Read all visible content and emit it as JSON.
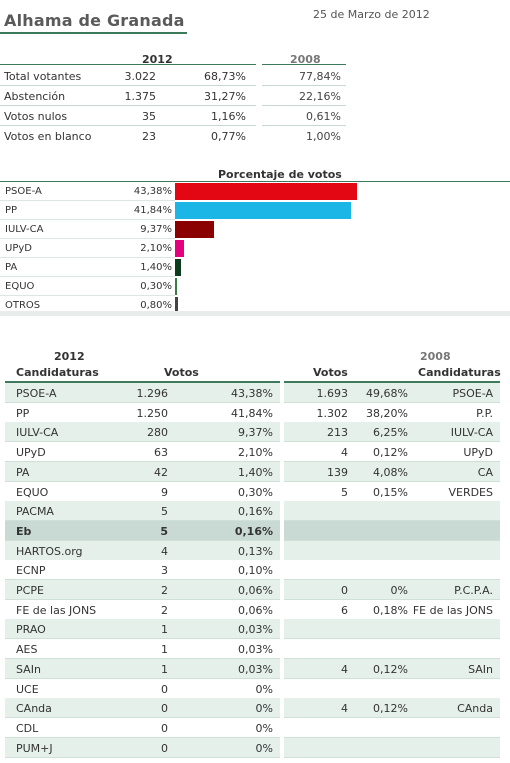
{
  "header": {
    "title": "Alhama de Granada",
    "date": "25 de Marzo de 2012"
  },
  "summary": {
    "year_current": "2012",
    "year_previous": "2008",
    "rows": [
      {
        "label": "Total votantes",
        "value": "3.022",
        "pct": "68,73%",
        "pct_prev": "77,84%"
      },
      {
        "label": "Abstención",
        "value": "1.375",
        "pct": "31,27%",
        "pct_prev": "22,16%"
      },
      {
        "label": "Votos nulos",
        "value": "35",
        "pct": "1,16%",
        "pct_prev": "0,61%"
      },
      {
        "label": "Votos en blanco",
        "value": "23",
        "pct": "0,77%",
        "pct_prev": "1,00%"
      }
    ]
  },
  "chart_data": {
    "type": "bar",
    "title": "Porcentaje de votos",
    "orientation": "horizontal",
    "categories": [
      "PSOE-A",
      "PP",
      "IULV-CA",
      "UPyD",
      "PA",
      "EQUO",
      "OTROS"
    ],
    "values": [
      43.38,
      41.84,
      9.37,
      2.1,
      1.4,
      0.3,
      0.8
    ],
    "value_labels": [
      "43,38%",
      "41,84%",
      "9,37%",
      "2,10%",
      "1,40%",
      "0,30%",
      "0,80%"
    ],
    "colors": [
      "#e30613",
      "#1bb6e5",
      "#8b0000",
      "#e5007e",
      "#0d3b1e",
      "#3a7d44",
      "#444444"
    ],
    "xlim": [
      0,
      43.38
    ]
  },
  "results": {
    "year_current": "2012",
    "year_previous": "2008",
    "headers": {
      "candidaturas": "Candidaturas",
      "votos": "Votos",
      "votos_prev": "Votos",
      "candidaturas_prev": "Candidaturas"
    },
    "rows": [
      {
        "name": "PSOE-A",
        "votes": "1.296",
        "pct": "43,38%",
        "votes_prev": "1.693",
        "pct_prev": "49,68%",
        "name_prev": "PSOE-A"
      },
      {
        "name": "PP",
        "votes": "1.250",
        "pct": "41,84%",
        "votes_prev": "1.302",
        "pct_prev": "38,20%",
        "name_prev": "P.P."
      },
      {
        "name": "IULV-CA",
        "votes": "280",
        "pct": "9,37%",
        "votes_prev": "213",
        "pct_prev": "6,25%",
        "name_prev": "IULV-CA"
      },
      {
        "name": "UPyD",
        "votes": "63",
        "pct": "2,10%",
        "votes_prev": "4",
        "pct_prev": "0,12%",
        "name_prev": "UPyD"
      },
      {
        "name": "PA",
        "votes": "42",
        "pct": "1,40%",
        "votes_prev": "139",
        "pct_prev": "4,08%",
        "name_prev": "CA"
      },
      {
        "name": "EQUO",
        "votes": "9",
        "pct": "0,30%",
        "votes_prev": "5",
        "pct_prev": "0,15%",
        "name_prev": "VERDES"
      },
      {
        "name": "PACMA",
        "votes": "5",
        "pct": "0,16%",
        "votes_prev": "",
        "pct_prev": "",
        "name_prev": ""
      },
      {
        "name": "Eb",
        "votes": "5",
        "pct": "0,16%",
        "votes_prev": "",
        "pct_prev": "",
        "name_prev": ""
      },
      {
        "name": "HARTOS.org",
        "votes": "4",
        "pct": "0,13%",
        "votes_prev": "",
        "pct_prev": "",
        "name_prev": ""
      },
      {
        "name": "ECNP",
        "votes": "3",
        "pct": "0,10%",
        "votes_prev": "",
        "pct_prev": "",
        "name_prev": ""
      },
      {
        "name": "PCPE",
        "votes": "2",
        "pct": "0,06%",
        "votes_prev": "0",
        "pct_prev": "0%",
        "name_prev": "P.C.P.A."
      },
      {
        "name": "FE de las JONS",
        "votes": "2",
        "pct": "0,06%",
        "votes_prev": "6",
        "pct_prev": "0,18%",
        "name_prev": "FE de las JONS"
      },
      {
        "name": "PRAO",
        "votes": "1",
        "pct": "0,03%",
        "votes_prev": "",
        "pct_prev": "",
        "name_prev": ""
      },
      {
        "name": "AES",
        "votes": "1",
        "pct": "0,03%",
        "votes_prev": "",
        "pct_prev": "",
        "name_prev": ""
      },
      {
        "name": "SAIn",
        "votes": "1",
        "pct": "0,03%",
        "votes_prev": "4",
        "pct_prev": "0,12%",
        "name_prev": "SAIn"
      },
      {
        "name": "UCE",
        "votes": "0",
        "pct": "0%",
        "votes_prev": "",
        "pct_prev": "",
        "name_prev": ""
      },
      {
        "name": "CAnda",
        "votes": "0",
        "pct": "0%",
        "votes_prev": "4",
        "pct_prev": "0,12%",
        "name_prev": "CAnda"
      },
      {
        "name": "CDL",
        "votes": "0",
        "pct": "0%",
        "votes_prev": "",
        "pct_prev": "",
        "name_prev": ""
      },
      {
        "name": "PUM+J",
        "votes": "0",
        "pct": "0%",
        "votes_prev": "",
        "pct_prev": "",
        "name_prev": ""
      }
    ],
    "highlight_row": "Eb",
    "row_colors": {
      "shade": "#e6f0eb",
      "white": "#ffffff",
      "highlight": "#c9d9d3"
    }
  }
}
